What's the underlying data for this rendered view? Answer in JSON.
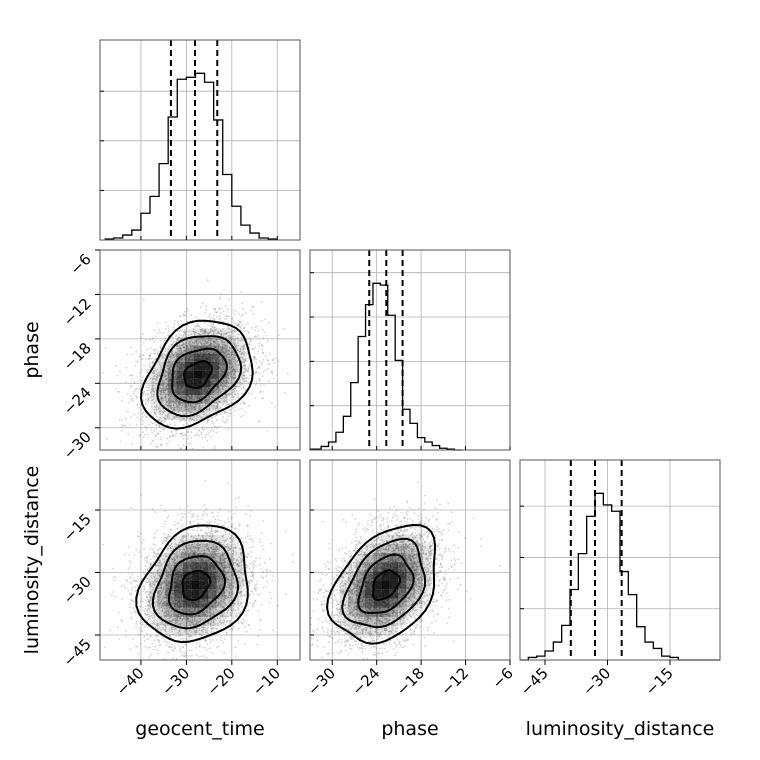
{
  "chart_data": {
    "type": "corner",
    "parameters": [
      "geocent_time",
      "phase",
      "luminosity_distance"
    ],
    "axes": {
      "geocent_time": {
        "label": "geocent_time",
        "range": [
          -49,
          -5
        ],
        "ticks": [
          -40,
          -30,
          -20,
          -10
        ],
        "tick_labels": [
          "−40",
          "−30",
          "−20",
          "−10"
        ],
        "quantiles": [
          -33.4,
          -28.1,
          -23.2
        ]
      },
      "phase": {
        "label": "phase",
        "range": [
          -33,
          -6
        ],
        "ticks": [
          -30,
          -24,
          -18,
          -12,
          -6
        ],
        "tick_labels": [
          "−30",
          "−24",
          "−18",
          "−12",
          "−6"
        ],
        "quantiles": [
          -25.0,
          -22.7,
          -20.5
        ]
      },
      "luminosity_distance": {
        "label": "luminosity_distance",
        "range": [
          -51,
          -3
        ],
        "ticks": [
          -45,
          -30,
          -15
        ],
        "tick_labels": [
          "−45",
          "−30",
          "−15"
        ],
        "quantiles": [
          -38.8,
          -33.0,
          -26.6
        ]
      }
    },
    "histograms": {
      "geocent_time": {
        "bin_edges": [
          -48,
          -46,
          -44,
          -42,
          -40,
          -38,
          -36,
          -34,
          -32,
          -30,
          -28,
          -26,
          -24,
          -22,
          -20,
          -18,
          -16,
          -14,
          -12,
          -10
        ],
        "counts": [
          1,
          2,
          5,
          10,
          27,
          44,
          77,
          124,
          162,
          164,
          168,
          159,
          121,
          66,
          34,
          15,
          7,
          2,
          1
        ]
      },
      "phase": {
        "bin_edges": [
          -34.5,
          -33.5,
          -32.5,
          -31.5,
          -30.5,
          -29.5,
          -28.5,
          -27.5,
          -26.5,
          -25.5,
          -24.5,
          -23.5,
          -22.5,
          -21.5,
          -20.5,
          -19.5,
          -18.5,
          -17.5,
          -16.5,
          -15.5,
          -14.5,
          -13.5,
          -12.5
        ],
        "counts": [
          0,
          1,
          1,
          4,
          9,
          20,
          38,
          76,
          128,
          164,
          188,
          186,
          152,
          101,
          46,
          30,
          14,
          9,
          5,
          2,
          1,
          0
        ]
      },
      "luminosity_distance": {
        "bin_edges": [
          -51,
          -49,
          -47,
          -45,
          -43,
          -41,
          -39,
          -37,
          -35,
          -33,
          -31,
          -29,
          -27,
          -25,
          -23,
          -21,
          -19,
          -17,
          -15,
          -13,
          -11,
          -9,
          -7,
          -5,
          -3
        ],
        "counts": [
          0,
          2,
          3,
          7,
          14,
          27,
          55,
          83,
          112,
          130,
          121,
          116,
          69,
          51,
          26,
          14,
          9,
          3,
          2,
          0,
          0,
          0,
          0,
          0
        ]
      }
    },
    "joint": [
      {
        "x": "geocent_time",
        "y": "phase",
        "mean": [
          -27.5,
          -22.8
        ],
        "sigma": [
          6.0,
          3.6
        ],
        "correlation": 0.3,
        "n_samples": 4000
      },
      {
        "x": "geocent_time",
        "y": "luminosity_distance",
        "mean": [
          -28.0,
          -33.0
        ],
        "sigma": [
          6.0,
          7.0
        ],
        "correlation": 0.2,
        "n_samples": 4000
      },
      {
        "x": "phase",
        "y": "luminosity_distance",
        "mean": [
          -22.8,
          -33.0
        ],
        "sigma": [
          3.6,
          7.0
        ],
        "correlation": 0.35,
        "n_samples": 4000
      }
    ],
    "contour_levels_sigma": [
      0.5,
      1.0,
      1.5,
      2.0
    ],
    "grid": true,
    "colors": {
      "line": "#000000",
      "points": "#888888",
      "grid": "#b0b0b0",
      "density": "#000000"
    }
  }
}
